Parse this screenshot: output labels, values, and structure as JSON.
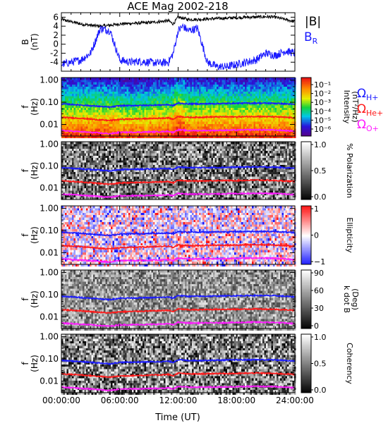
{
  "title": "ACE Mag 2002-218",
  "x_axis": {
    "label": "Time (UT)",
    "ticks": [
      "00:00:00",
      "06:00:00",
      "12:00:00",
      "18:00:00",
      "24:00:00"
    ],
    "range_hours": [
      0,
      24
    ]
  },
  "colors": {
    "B_total": "#000000",
    "B_R": "#1a1aff",
    "H_plus": "#1a1aff",
    "He_plus": "#ff1a1a",
    "O_plus": "#ff1aff"
  },
  "chart_data": [
    {
      "type": "line",
      "panel": "B",
      "ylabel_line1": "B",
      "ylabel_line2": "(nT)",
      "ylim": [
        -6,
        7
      ],
      "yticks": [
        "6",
        "4",
        "2",
        "0",
        "-2",
        "-4"
      ],
      "ytick_values": [
        6,
        4,
        2,
        0,
        -2,
        -4
      ],
      "legend": [
        "|B|",
        "B"
      ],
      "legend_sub": [
        "",
        "R"
      ],
      "series": [
        {
          "name": "|B|",
          "x": [
            0,
            1,
            2,
            3,
            4,
            5,
            6,
            7,
            8,
            9,
            10,
            11,
            11.5,
            12,
            12.5,
            13,
            14,
            15,
            16,
            17,
            18,
            19,
            20,
            21,
            22,
            23,
            24
          ],
          "y": [
            5.5,
            5.0,
            4.5,
            4.2,
            4.0,
            4.2,
            4.5,
            4.6,
            4.7,
            4.8,
            5.0,
            5.2,
            4.5,
            6.0,
            5.8,
            5.5,
            5.5,
            5.6,
            5.7,
            5.8,
            5.9,
            6.0,
            6.0,
            6.1,
            6.0,
            5.5,
            5.0
          ]
        },
        {
          "name": "B_R",
          "x": [
            0,
            1,
            2,
            3,
            4,
            5,
            6,
            7,
            8,
            9,
            10,
            11,
            11.5,
            12,
            12.5,
            13,
            14,
            15,
            16,
            17,
            18,
            19,
            20,
            21,
            22,
            23,
            24
          ],
          "y": [
            -4.5,
            -4.0,
            -3.5,
            -2.0,
            3.5,
            3.0,
            -3.5,
            -4.0,
            -3.8,
            -4.0,
            -4.2,
            -4.0,
            -2.0,
            3.0,
            4.0,
            3.0,
            3.5,
            -4.0,
            -5.0,
            -5.0,
            -4.5,
            -4.0,
            -3.5,
            -2.0,
            -2.5,
            -1.5,
            -2.0
          ]
        }
      ]
    },
    {
      "type": "heatmap",
      "panel": "intensity",
      "ylabel_line1": "f",
      "ylabel_line2": "(Hz)",
      "yscale": "log",
      "ylim": [
        0.003,
        1.3
      ],
      "yticks": [
        "1.00",
        "0.10",
        "0.01"
      ],
      "ytick_values": [
        1.0,
        0.1,
        0.01
      ],
      "colorbar_label": "Intensity",
      "colorbar_label2": "(nT²/Hz)",
      "colorbar_ticks": [
        "10⁻¹",
        "10⁻²",
        "10⁻³",
        "10⁻⁴",
        "10⁻⁵",
        "10⁻⁶"
      ],
      "colorbar_tick_values": [
        0.1,
        0.01,
        0.001,
        0.0001,
        1e-05,
        1e-06
      ],
      "colormap": "rainbow",
      "overlay_labels": [
        "Ω",
        "Ω",
        "Ω"
      ],
      "overlay_subs": [
        "H+",
        "He+",
        "O+"
      ]
    },
    {
      "type": "heatmap",
      "panel": "polarization",
      "ylabel_line1": "f",
      "ylabel_line2": "(Hz)",
      "yscale": "log",
      "ylim": [
        0.003,
        1.3
      ],
      "yticks": [
        "1.00",
        "0.10",
        "0.01"
      ],
      "ytick_values": [
        1.0,
        0.1,
        0.01
      ],
      "colorbar_label": "% Polarization",
      "colorbar_ticks": [
        "1.0",
        "0.5",
        "0.0"
      ],
      "colorbar_tick_values": [
        1.0,
        0.5,
        0.0
      ],
      "colormap": "gray"
    },
    {
      "type": "heatmap",
      "panel": "ellipticity",
      "ylabel_line1": "f",
      "ylabel_line2": "(Hz)",
      "yscale": "log",
      "ylim": [
        0.003,
        1.3
      ],
      "yticks": [
        "1.00",
        "0.10",
        "0.01"
      ],
      "ytick_values": [
        1.0,
        0.1,
        0.01
      ],
      "colorbar_label": "Ellipticity",
      "colorbar_ticks": [
        "1",
        "0",
        "−1"
      ],
      "colorbar_tick_values": [
        1,
        0,
        -1
      ],
      "colormap": "bwr"
    },
    {
      "type": "heatmap",
      "panel": "k_dot_B",
      "ylabel_line1": "f",
      "ylabel_line2": "(Hz)",
      "yscale": "log",
      "ylim": [
        0.003,
        1.3
      ],
      "yticks": [
        "1.00",
        "0.10",
        "0.01"
      ],
      "ytick_values": [
        1.0,
        0.1,
        0.01
      ],
      "colorbar_label": "k dot B",
      "colorbar_label2": "(Deg)",
      "colorbar_ticks": [
        "90",
        "60",
        "30",
        "0"
      ],
      "colorbar_tick_values": [
        90,
        60,
        30,
        0
      ],
      "colormap": "gray"
    },
    {
      "type": "heatmap",
      "panel": "coherency",
      "ylabel_line1": "f",
      "ylabel_line2": "(Hz)",
      "yscale": "log",
      "ylim": [
        0.003,
        1.3
      ],
      "yticks": [
        "1.00",
        "0.10",
        "0.01"
      ],
      "ytick_values": [
        1.0,
        0.1,
        0.01
      ],
      "colorbar_label": "Coherency",
      "colorbar_ticks": [
        "1.0",
        "0.5",
        "0.0"
      ],
      "colorbar_tick_values": [
        1.0,
        0.5,
        0.0
      ],
      "colormap": "gray"
    }
  ],
  "gyrofrequency_lines": {
    "x": [
      0,
      2,
      4,
      5,
      6,
      8,
      10,
      11,
      11.5,
      12,
      12.5,
      13,
      14,
      16,
      18,
      20,
      22,
      23,
      24
    ],
    "H_plus": [
      0.085,
      0.075,
      0.065,
      0.06,
      0.07,
      0.072,
      0.075,
      0.078,
      0.07,
      0.092,
      0.088,
      0.085,
      0.085,
      0.087,
      0.09,
      0.092,
      0.09,
      0.085,
      0.08
    ],
    "He_plus": [
      0.021,
      0.019,
      0.016,
      0.015,
      0.017,
      0.018,
      0.019,
      0.02,
      0.017,
      0.023,
      0.022,
      0.021,
      0.021,
      0.022,
      0.022,
      0.023,
      0.022,
      0.021,
      0.02
    ],
    "O_plus": [
      0.0053,
      0.0047,
      0.0041,
      0.0038,
      0.0044,
      0.0045,
      0.0047,
      0.0049,
      0.0044,
      0.0058,
      0.0055,
      0.0053,
      0.0053,
      0.0054,
      0.0056,
      0.0058,
      0.0056,
      0.0053,
      0.005
    ]
  }
}
